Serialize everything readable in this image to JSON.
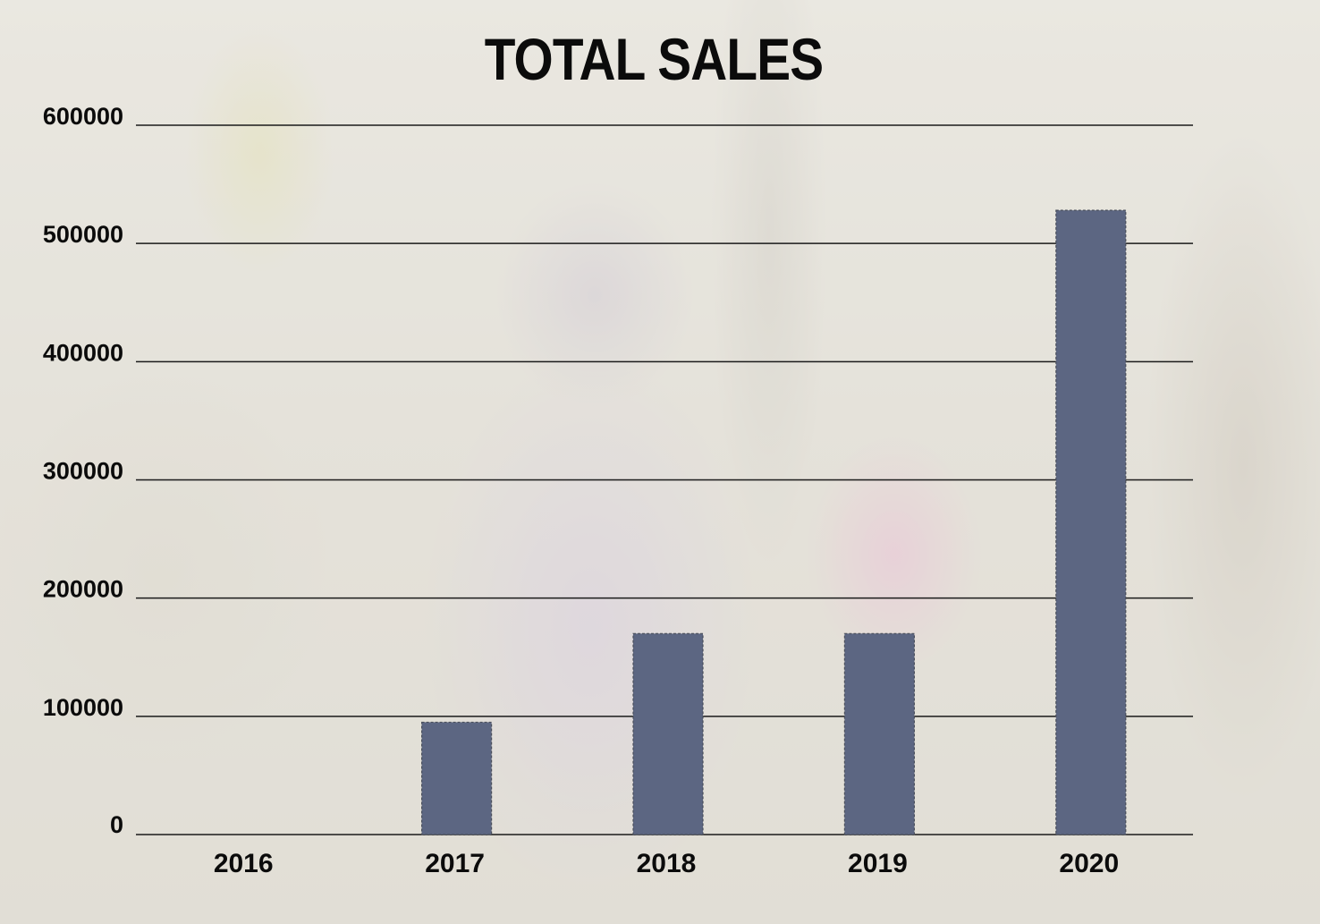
{
  "chart_data": {
    "type": "bar",
    "title": "TOTAL SALES",
    "xlabel": "",
    "ylabel": "",
    "categories": [
      "2016",
      "2017",
      "2018",
      "2019",
      "2020"
    ],
    "values": [
      0,
      95000,
      170000,
      170000,
      528000
    ],
    "ylim": [
      0,
      600000
    ],
    "yticks": [
      "0",
      "100000",
      "200000",
      "300000",
      "400000",
      "500000",
      "600000"
    ],
    "grid": true,
    "legend": "none",
    "colors": {
      "bar": "#5c6682",
      "bar_outline": "#4a4f5c",
      "grid": "#1a1a1a",
      "text": "#0b0b0b"
    }
  }
}
